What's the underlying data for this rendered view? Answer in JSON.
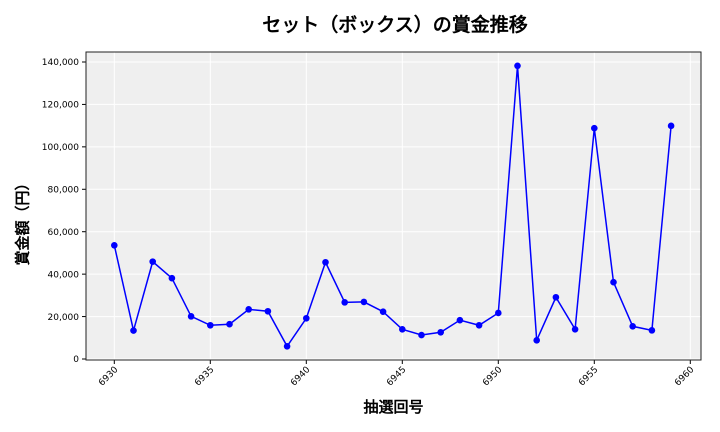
{
  "chart_data": {
    "type": "line",
    "title": "セット（ボックス）の賞金推移",
    "xlabel": "抽選回号",
    "ylabel": "賞金額（円）",
    "x": [
      6930,
      6931,
      6932,
      6933,
      6934,
      6935,
      6936,
      6937,
      6938,
      6939,
      6940,
      6941,
      6942,
      6943,
      6944,
      6945,
      6946,
      6947,
      6948,
      6949,
      6950,
      6951,
      6952,
      6953,
      6954,
      6955,
      6956,
      6957,
      6958,
      6959
    ],
    "series": [
      {
        "name": "賞金額",
        "color": "#0000ff",
        "marker": "circle",
        "values": [
          53600,
          13400,
          45900,
          38100,
          20100,
          15900,
          16400,
          23400,
          22500,
          6000,
          19200,
          45600,
          26700,
          26900,
          22300,
          14000,
          11300,
          12600,
          18300,
          15900,
          21700,
          138200,
          8800,
          29100,
          14000,
          108800,
          36200,
          15400,
          13500,
          109900
        ]
      }
    ],
    "xticks": [
      6930,
      6935,
      6940,
      6945,
      6950,
      6955,
      6960
    ],
    "xtick_labels": [
      "6930",
      "6935",
      "6940",
      "6945",
      "6950",
      "6955",
      "6960"
    ],
    "yticks": [
      0,
      20000,
      40000,
      60000,
      80000,
      100000,
      120000,
      140000
    ],
    "ytick_labels": [
      "0",
      "20,000",
      "40,000",
      "60,000",
      "80,000",
      "100,000",
      "120,000",
      "140,000"
    ],
    "xlim": [
      6928.9,
      6960.5
    ],
    "ylim": [
      -700,
      145000
    ],
    "grid": true,
    "legend": null,
    "background_color": "#efefef",
    "grid_color": "#ffffff"
  }
}
